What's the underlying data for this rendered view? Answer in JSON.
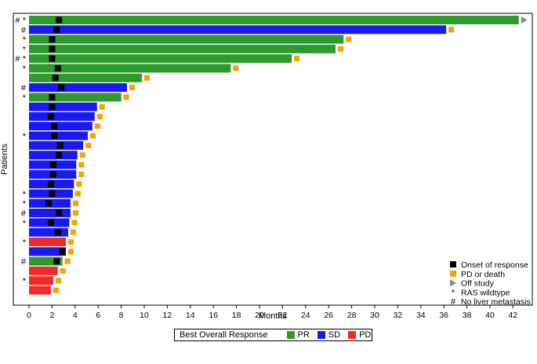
{
  "chart_data": {
    "type": "bar",
    "orientation": "horizontal",
    "title": "",
    "xlabel": "Months",
    "ylabel": "Patients",
    "xlim": [
      0,
      43
    ],
    "xticks": [
      0,
      2,
      4,
      6,
      8,
      10,
      12,
      14,
      16,
      18,
      20,
      22,
      24,
      26,
      28,
      30,
      32,
      34,
      36,
      38,
      40,
      42
    ],
    "grid": false,
    "colors": {
      "PR": "#2e9a2e",
      "SD": "#1a1aee",
      "PD": "#ee2a2a",
      "onset": "#000000",
      "pd_death": "#f5a300",
      "off_study": "#888888"
    },
    "patients": [
      {
        "duration": 42.5,
        "response": "PR",
        "onset": 2.6,
        "end": "off_study",
        "markers": "# *"
      },
      {
        "duration": 36.2,
        "response": "SD",
        "onset": 2.4,
        "end": "pd_death",
        "markers": "#"
      },
      {
        "duration": 27.3,
        "response": "PR",
        "onset": 2.0,
        "end": "pd_death",
        "markers": "*"
      },
      {
        "duration": 26.6,
        "response": "PR",
        "onset": 2.0,
        "end": "pd_death",
        "markers": "*"
      },
      {
        "duration": 22.8,
        "response": "PR",
        "onset": 2.0,
        "end": "pd_death",
        "markers": "# *"
      },
      {
        "duration": 17.5,
        "response": "PR",
        "onset": 2.5,
        "end": "pd_death",
        "markers": "*"
      },
      {
        "duration": 9.8,
        "response": "PR",
        "onset": 2.3,
        "end": "pd_death",
        "markers": ""
      },
      {
        "duration": 8.5,
        "response": "SD",
        "onset": 2.8,
        "end": "pd_death",
        "markers": "#"
      },
      {
        "duration": 8.0,
        "response": "PR",
        "onset": 2.0,
        "end": "pd_death",
        "markers": "*"
      },
      {
        "duration": 5.9,
        "response": "SD",
        "onset": 2.0,
        "end": "pd_death",
        "markers": ""
      },
      {
        "duration": 5.7,
        "response": "SD",
        "onset": 1.9,
        "end": "pd_death",
        "markers": ""
      },
      {
        "duration": 5.5,
        "response": "SD",
        "onset": 2.2,
        "end": "pd_death",
        "markers": ""
      },
      {
        "duration": 5.1,
        "response": "SD",
        "onset": 2.2,
        "end": "pd_death",
        "markers": "*"
      },
      {
        "duration": 4.7,
        "response": "SD",
        "onset": 2.7,
        "end": "pd_death",
        "markers": ""
      },
      {
        "duration": 4.2,
        "response": "SD",
        "onset": 2.6,
        "end": "pd_death",
        "markers": ""
      },
      {
        "duration": 4.1,
        "response": "SD",
        "onset": 2.1,
        "end": "pd_death",
        "markers": ""
      },
      {
        "duration": 4.1,
        "response": "SD",
        "onset": 2.1,
        "end": "pd_death",
        "markers": ""
      },
      {
        "duration": 3.9,
        "response": "SD",
        "onset": 1.9,
        "end": "pd_death",
        "markers": ""
      },
      {
        "duration": 3.8,
        "response": "SD",
        "onset": 2.0,
        "end": "pd_death",
        "markers": "*"
      },
      {
        "duration": 3.6,
        "response": "SD",
        "onset": 1.7,
        "end": "pd_death",
        "markers": "*"
      },
      {
        "duration": 3.6,
        "response": "SD",
        "onset": 2.6,
        "end": "pd_death",
        "markers": "#"
      },
      {
        "duration": 3.5,
        "response": "SD",
        "onset": 1.9,
        "end": "pd_death",
        "markers": "*"
      },
      {
        "duration": 3.4,
        "response": "SD",
        "onset": 2.5,
        "end": "pd_death",
        "markers": ""
      },
      {
        "duration": 3.2,
        "response": "PD",
        "onset": null,
        "end": "pd_death",
        "markers": "*"
      },
      {
        "duration": 3.2,
        "response": "SD",
        "onset": 2.9,
        "end": "pd_death",
        "markers": ""
      },
      {
        "duration": 2.9,
        "response": "PR",
        "onset": 2.4,
        "end": "pd_death",
        "markers": "#"
      },
      {
        "duration": 2.5,
        "response": "PD",
        "onset": null,
        "end": "pd_death",
        "markers": ""
      },
      {
        "duration": 2.1,
        "response": "PD",
        "onset": null,
        "end": "pd_death",
        "markers": "*"
      },
      {
        "duration": 1.9,
        "response": "PD",
        "onset": null,
        "end": "pd_death",
        "markers": ""
      }
    ],
    "legend": {
      "placement": "bottom-right",
      "items": [
        {
          "symbol": "square",
          "color_key": "onset",
          "label": "Onset of response"
        },
        {
          "symbol": "square",
          "color_key": "pd_death",
          "label": "PD or death"
        },
        {
          "symbol": "triangle",
          "color_key": "off_study",
          "label": "Off study"
        },
        {
          "symbol": "*",
          "color_key": "onset",
          "label": "RAS wildtype"
        },
        {
          "symbol": "#",
          "color_key": "onset",
          "label": "No liver metastasis"
        }
      ]
    },
    "response_legend": {
      "title": "Best Overall Response",
      "items": [
        {
          "key": "PR",
          "label": "PR"
        },
        {
          "key": "SD",
          "label": "SD"
        },
        {
          "key": "PD",
          "label": "PD"
        }
      ]
    }
  }
}
